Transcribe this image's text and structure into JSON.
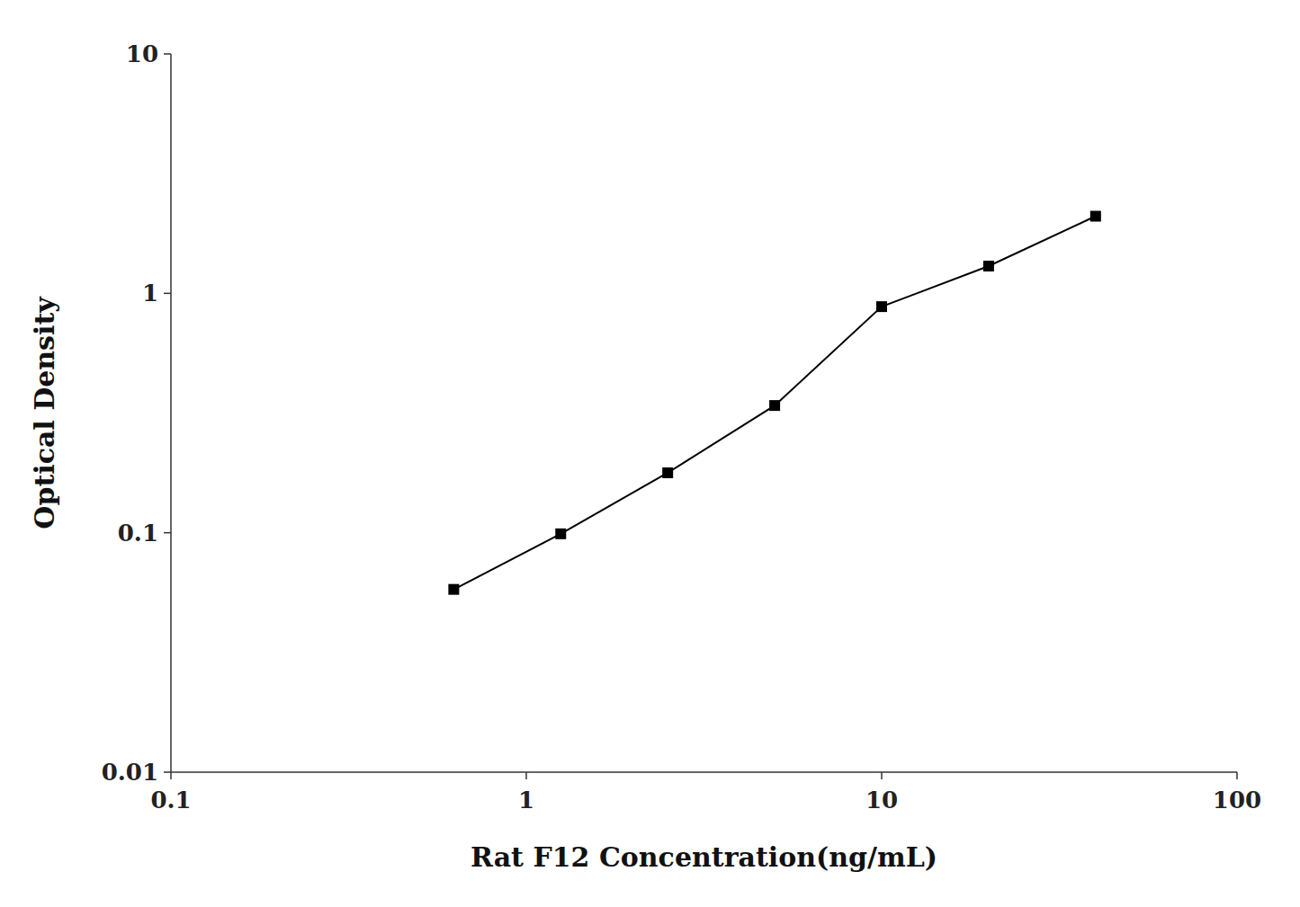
{
  "chart_data": {
    "type": "line",
    "x": [
      0.625,
      1.25,
      2.5,
      5.0,
      10.0,
      20.0,
      40.0
    ],
    "values": [
      0.058,
      0.099,
      0.178,
      0.34,
      0.88,
      1.3,
      2.1
    ],
    "xlabel": "Rat F12 Concentration(ng/mL)",
    "ylabel": "Optical Density",
    "xlim": [
      0.1,
      100
    ],
    "ylim": [
      0.01,
      10
    ],
    "xticks": [
      0.1,
      1,
      10,
      100
    ],
    "yticks": [
      0.01,
      0.1,
      1,
      10
    ],
    "log": true,
    "grid": false,
    "color": "#000000",
    "marker": "square"
  }
}
